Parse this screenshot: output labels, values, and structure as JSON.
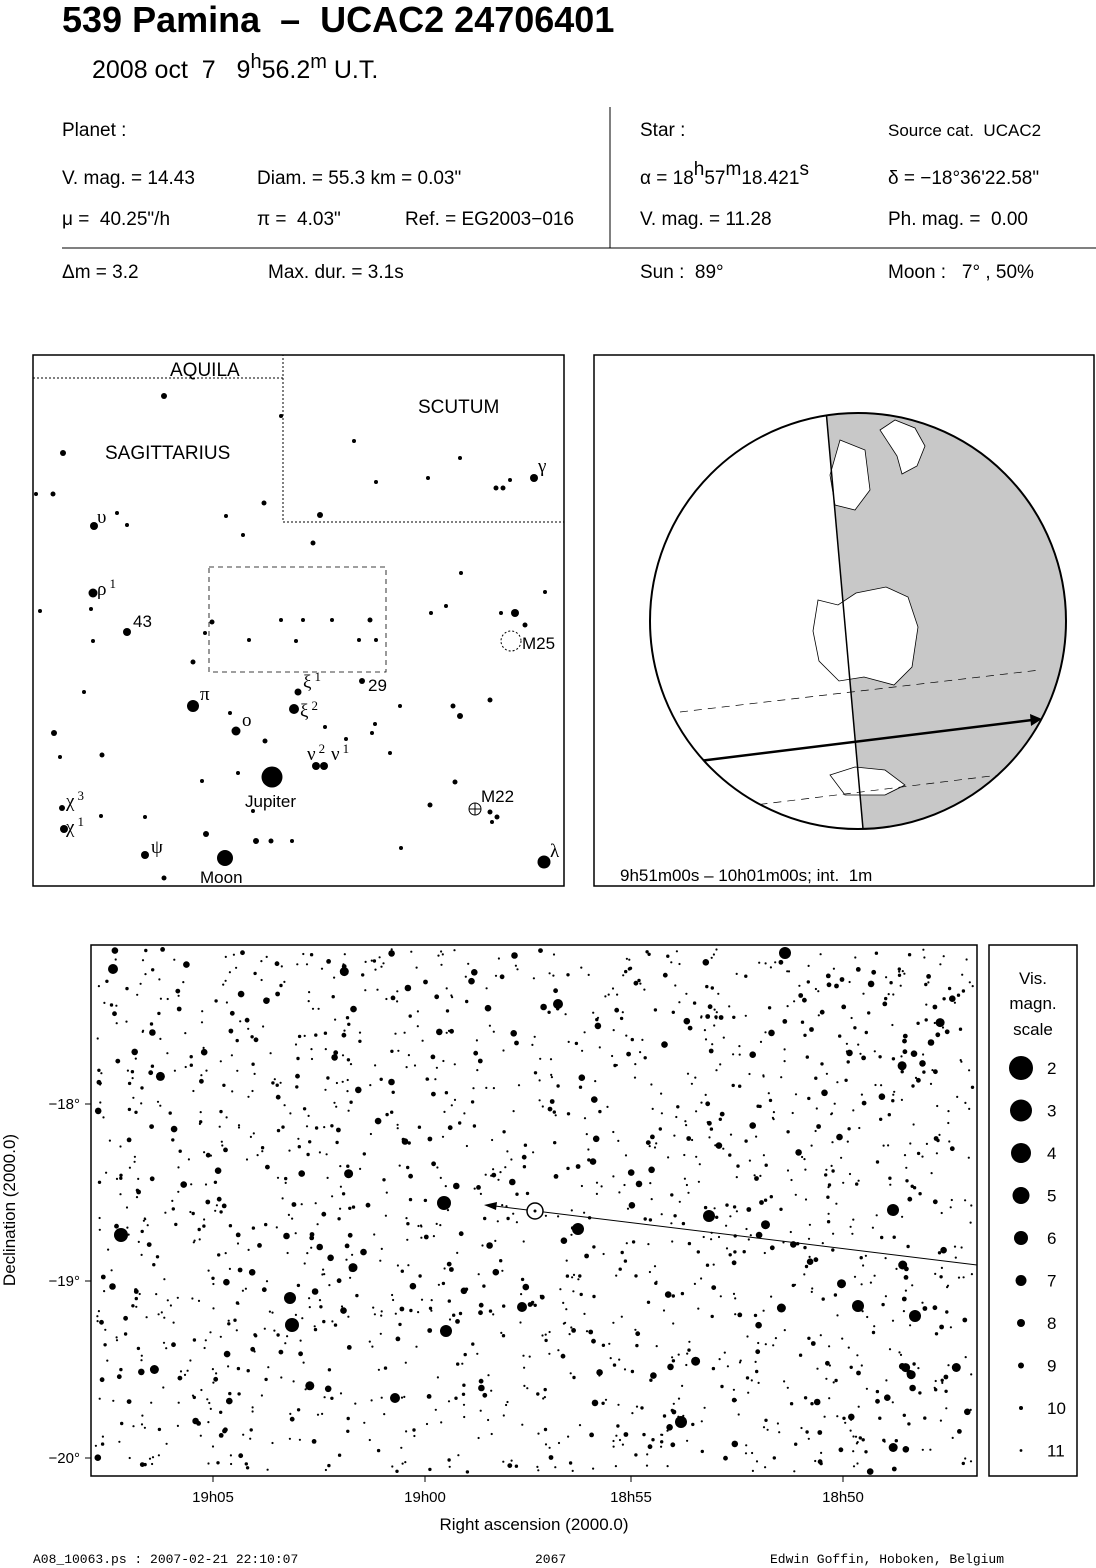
{
  "header": {
    "title": "539 Pamina  –  UCAC2 24706401",
    "date": {
      "day": "2008 oct  7   ",
      "hour": "9",
      "h": "h",
      "min": "56.2",
      "m": "m",
      "ut": " U.T."
    }
  },
  "planet": {
    "label": "Planet :",
    "vmag": "V. mag. = 14.43",
    "diam": "Diam. = 55.3 km = 0.03\"",
    "mu": "μ =  40.25\"/h",
    "pi": "π =  4.03\"",
    "ref": "Ref. = EG2003−016"
  },
  "star": {
    "label": "Star :",
    "source": "Source cat.  UCAC2",
    "alpha": {
      "a": "α = 18",
      "h": "h",
      "b": "57",
      "m": "m",
      "c": "18.421",
      "s": "s"
    },
    "delta": "δ = −18°36'22.58\"",
    "vmag": "V. mag. = 11.28",
    "phmag": "Ph. mag. =  0.00"
  },
  "event": {
    "dm": "Δm = 3.2",
    "maxdur": "Max. dur. = 3.1s",
    "sun": "Sun :  89°",
    "moon": "Moon :   7° , 50%"
  },
  "finder": {
    "constellations": [
      "AQUILA",
      "SCUTUM",
      "SAGITTARIUS"
    ],
    "objects": [
      "Jupiter",
      "Moon",
      "M25",
      "M22",
      "43",
      "29"
    ],
    "greek": [
      {
        "letter": "γ"
      },
      {
        "letter": "υ"
      },
      {
        "letter": "ρ",
        "index": 1
      },
      {
        "letter": "π"
      },
      {
        "letter": "ο"
      },
      {
        "letter": "ξ",
        "index": 1
      },
      {
        "letter": "ξ",
        "index": 2
      },
      {
        "letter": "ν",
        "index": 2
      },
      {
        "letter": "ν",
        "index": 1
      },
      {
        "letter": "χ",
        "index": 3
      },
      {
        "letter": "χ",
        "index": 1
      },
      {
        "letter": "ψ"
      },
      {
        "letter": "λ"
      }
    ]
  },
  "globe": {
    "caption": "9h51m00s – 10h01m00s; int.  1m"
  },
  "field": {
    "xlabel": "Right ascension (2000.0)",
    "ylabel": "Declination (2000.0)",
    "xticks": [
      "19h05",
      "19h00",
      "18h55",
      "18h50"
    ],
    "yticks": [
      "−18°",
      "−19°",
      "−20°"
    ],
    "scale_title": [
      "Vis.",
      "magn.",
      "scale"
    ],
    "scale": [
      2,
      3,
      4,
      5,
      6,
      7,
      8,
      9,
      10,
      11
    ]
  },
  "footer": {
    "file": "A08_10063.ps : 2007-02-21 22:10:07",
    "number": "2067",
    "author": "Edwin Goffin, Hoboken, Belgium"
  }
}
